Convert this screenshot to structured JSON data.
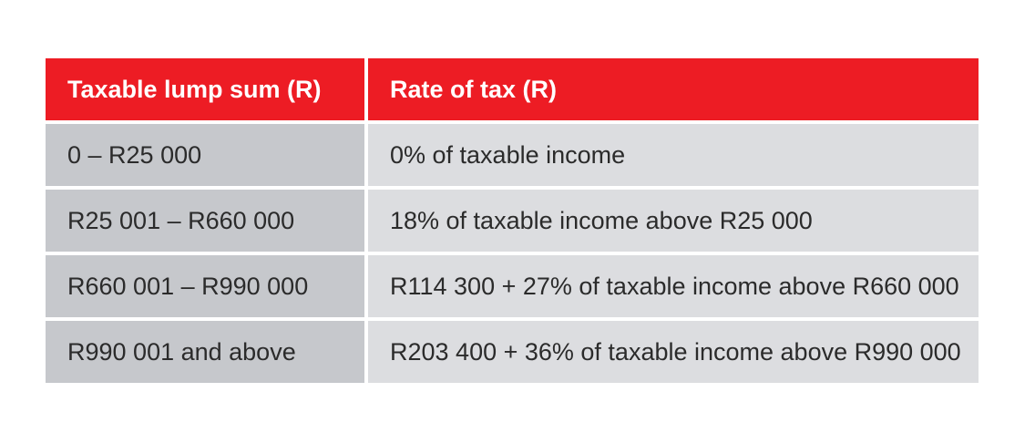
{
  "table": {
    "headers": [
      "Taxable lump sum (R)",
      "Rate of tax (R)"
    ],
    "rows": [
      [
        "0 – R25 000",
        "0% of taxable income"
      ],
      [
        "R25 001 – R660 000",
        "18% of taxable income above R25 000"
      ],
      [
        "R660 001 – R990 000",
        "R114 300 + 27% of taxable income above R660 000"
      ],
      [
        "R990 001 and above",
        "R203 400 + 36% of taxable income above R990 000"
      ]
    ]
  },
  "colors": {
    "header_background": "#ed1c24",
    "header_text": "#ffffff",
    "first_column_background": "#c6c8cc",
    "second_column_background": "#dcdde0",
    "body_text": "#2b2b2b"
  }
}
